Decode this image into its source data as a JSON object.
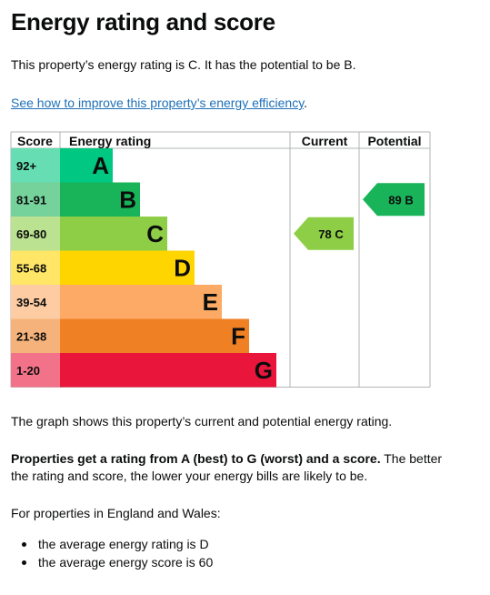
{
  "page": {
    "title": "Energy rating and score",
    "intro": "This property’s energy rating is C. It has the potential to be B.",
    "link_text": "See how to improve this property’s energy efficiency",
    "link_suffix": ".",
    "graph_caption": "The graph shows this property’s current and potential energy rating.",
    "ratings_bold": "Properties get a rating from A (best) to G (worst) and a score.",
    "ratings_rest": " The better the rating and score, the lower your energy bills are likely to be.",
    "region_note": "For properties in England and Wales:",
    "bullets": [
      "the average energy rating is D",
      "the average energy score is 60"
    ]
  },
  "chart_data": {
    "type": "bar",
    "headers": {
      "score": "Score",
      "rating": "Energy rating",
      "current": "Current",
      "potential": "Potential"
    },
    "bands": [
      {
        "range": "92+",
        "letter": "A",
        "color": "#00c781",
        "range_color": "#66ddb3"
      },
      {
        "range": "81-91",
        "letter": "B",
        "color": "#19b459",
        "range_color": "#75d29b"
      },
      {
        "range": "69-80",
        "letter": "C",
        "color": "#8dce46",
        "range_color": "#bbe290"
      },
      {
        "range": "55-68",
        "letter": "D",
        "color": "#ffd500",
        "range_color": "#ffe666"
      },
      {
        "range": "39-54",
        "letter": "E",
        "color": "#fcaa65",
        "range_color": "#fdcca3"
      },
      {
        "range": "21-38",
        "letter": "F",
        "color": "#ef8023",
        "range_color": "#f5b37b"
      },
      {
        "range": "1-20",
        "letter": "G",
        "color": "#e9153b",
        "range_color": "#f27389"
      }
    ],
    "current": {
      "score": 78,
      "letter": "C",
      "label": "78  C",
      "color": "#8dce46"
    },
    "potential": {
      "score": 89,
      "letter": "B",
      "label": "89  B",
      "color": "#19b459"
    }
  }
}
